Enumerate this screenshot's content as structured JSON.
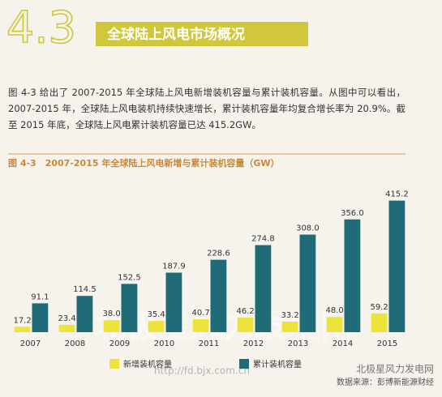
{
  "header": {
    "number": "4.3",
    "title": "全球陆上风电市场概况"
  },
  "body_text": "图 4-3 给出了 2007-2015 年全球陆上风电新增装机容量与累计装机容量。从图中可以看出，2007-2015 年，全球陆上风电装机持续快速增长，累计装机容量年均复合增长率为 20.9%。截至 2015 年底，全球陆上风电累计装机容量已达 415.2GW。",
  "chart_data": {
    "type": "bar",
    "title": "图 4-3　2007-2015 年全球陆上风电新增与累计装机容量（GW）",
    "categories": [
      "2007",
      "2008",
      "2009",
      "2010",
      "2011",
      "2012",
      "2013",
      "2014",
      "2015"
    ],
    "series": [
      {
        "name": "新增装机容量",
        "color": "#ece43a",
        "values": [
          17.2,
          23.4,
          38.0,
          35.4,
          40.7,
          46.2,
          33.2,
          48.0,
          59.2
        ],
        "value_labels": [
          "17.2",
          "23.4",
          "38.0",
          "35.4",
          "40.7",
          "46.2",
          "33.2",
          "48.0",
          "59.2"
        ]
      },
      {
        "name": "累计装机容量",
        "color": "#1f6c78",
        "values": [
          91.1,
          114.5,
          152.5,
          187.9,
          228.6,
          274.8,
          308.0,
          356.0,
          415.2
        ],
        "value_labels": [
          "91.1",
          "114.5",
          "152.5",
          "187.9",
          "228.6",
          "274.8",
          "308.0",
          "356.0",
          "415.2"
        ]
      }
    ],
    "ylim": [
      0,
      450
    ]
  },
  "source": "数据来源：彭博新能源财经",
  "watermark": {
    "name": "北极星风力发电网",
    "url": "http://fd.bjx.com.cn"
  }
}
